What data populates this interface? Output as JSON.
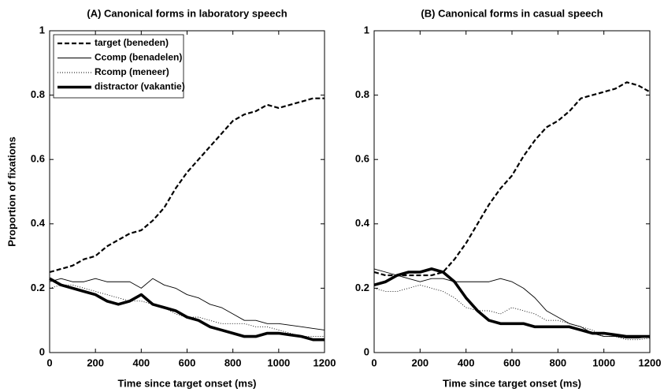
{
  "chart_data": [
    {
      "type": "line",
      "title": "(A) Canonical forms in laboratory speech",
      "xlabel": "Time since target onset (ms)",
      "ylabel": "Proportion of fixations",
      "x": [
        0,
        50,
        100,
        150,
        200,
        250,
        300,
        350,
        400,
        450,
        500,
        550,
        600,
        650,
        700,
        750,
        800,
        850,
        900,
        950,
        1000,
        1050,
        1100,
        1150,
        1200
      ],
      "xlim": [
        0,
        1200
      ],
      "xticks": [
        0,
        200,
        400,
        600,
        800,
        1000,
        1200
      ],
      "ylim": [
        0,
        1
      ],
      "yticks": [
        0,
        0.2,
        0.4,
        0.6,
        0.8,
        1
      ],
      "legend": "upper left",
      "series": [
        {
          "name": "target (beneden)",
          "color": "#000000",
          "style": "dashed",
          "weight": "medium",
          "values": [
            0.25,
            0.26,
            0.27,
            0.29,
            0.3,
            0.33,
            0.35,
            0.37,
            0.38,
            0.41,
            0.45,
            0.51,
            0.56,
            0.6,
            0.64,
            0.68,
            0.72,
            0.74,
            0.75,
            0.77,
            0.76,
            0.77,
            0.78,
            0.79,
            0.79
          ]
        },
        {
          "name": "Ccomp (benadelen)",
          "color": "#000000",
          "style": "solid",
          "weight": "thin",
          "values": [
            0.22,
            0.23,
            0.22,
            0.22,
            0.23,
            0.22,
            0.22,
            0.22,
            0.2,
            0.23,
            0.21,
            0.2,
            0.18,
            0.17,
            0.15,
            0.14,
            0.12,
            0.1,
            0.1,
            0.09,
            0.09,
            0.085,
            0.08,
            0.075,
            0.07
          ]
        },
        {
          "name": "Rcomp (meneer)",
          "color": "#000000",
          "style": "dotted",
          "weight": "thin",
          "values": [
            0.2,
            0.21,
            0.21,
            0.2,
            0.19,
            0.18,
            0.17,
            0.16,
            0.16,
            0.15,
            0.14,
            0.12,
            0.11,
            0.11,
            0.1,
            0.09,
            0.09,
            0.09,
            0.08,
            0.08,
            0.07,
            0.06,
            0.05,
            0.05,
            0.05
          ]
        },
        {
          "name": "distractor (vakantie)",
          "color": "#000000",
          "style": "solid",
          "weight": "thick",
          "values": [
            0.23,
            0.21,
            0.2,
            0.19,
            0.18,
            0.16,
            0.15,
            0.16,
            0.18,
            0.15,
            0.14,
            0.13,
            0.11,
            0.1,
            0.08,
            0.07,
            0.06,
            0.05,
            0.05,
            0.06,
            0.06,
            0.055,
            0.05,
            0.04,
            0.04
          ]
        }
      ]
    },
    {
      "type": "line",
      "title": "(B) Canonical forms in casual speech",
      "xlabel": "Time since target onset (ms)",
      "x": [
        0,
        50,
        100,
        150,
        200,
        250,
        300,
        350,
        400,
        450,
        500,
        550,
        600,
        650,
        700,
        750,
        800,
        850,
        900,
        950,
        1000,
        1050,
        1100,
        1150,
        1200
      ],
      "xlim": [
        0,
        1200
      ],
      "xticks": [
        0,
        200,
        400,
        600,
        800,
        1000,
        1200
      ],
      "ylim": [
        0,
        1
      ],
      "yticks": [
        0,
        0.2,
        0.4,
        0.6,
        0.8,
        1
      ],
      "series": [
        {
          "color": "#000000",
          "style": "dashed",
          "weight": "medium",
          "values": [
            0.25,
            0.24,
            0.24,
            0.24,
            0.24,
            0.24,
            0.25,
            0.29,
            0.34,
            0.4,
            0.46,
            0.51,
            0.55,
            0.61,
            0.66,
            0.7,
            0.72,
            0.75,
            0.79,
            0.8,
            0.81,
            0.82,
            0.84,
            0.83,
            0.81
          ]
        },
        {
          "color": "#000000",
          "style": "solid",
          "weight": "thin",
          "values": [
            0.26,
            0.25,
            0.24,
            0.23,
            0.22,
            0.23,
            0.23,
            0.22,
            0.22,
            0.22,
            0.22,
            0.23,
            0.22,
            0.2,
            0.17,
            0.13,
            0.11,
            0.09,
            0.08,
            0.06,
            0.05,
            0.05,
            0.045,
            0.045,
            0.05
          ]
        },
        {
          "color": "#000000",
          "style": "dotted",
          "weight": "thin",
          "values": [
            0.2,
            0.19,
            0.19,
            0.2,
            0.21,
            0.2,
            0.19,
            0.17,
            0.14,
            0.13,
            0.13,
            0.12,
            0.14,
            0.13,
            0.12,
            0.1,
            0.1,
            0.09,
            0.08,
            0.07,
            0.05,
            0.05,
            0.04,
            0.04,
            0.045
          ]
        },
        {
          "color": "#000000",
          "style": "solid",
          "weight": "thick",
          "values": [
            0.21,
            0.22,
            0.24,
            0.25,
            0.25,
            0.26,
            0.25,
            0.22,
            0.17,
            0.13,
            0.1,
            0.09,
            0.09,
            0.09,
            0.08,
            0.08,
            0.08,
            0.08,
            0.07,
            0.06,
            0.06,
            0.055,
            0.05,
            0.05,
            0.05
          ]
        }
      ]
    }
  ]
}
